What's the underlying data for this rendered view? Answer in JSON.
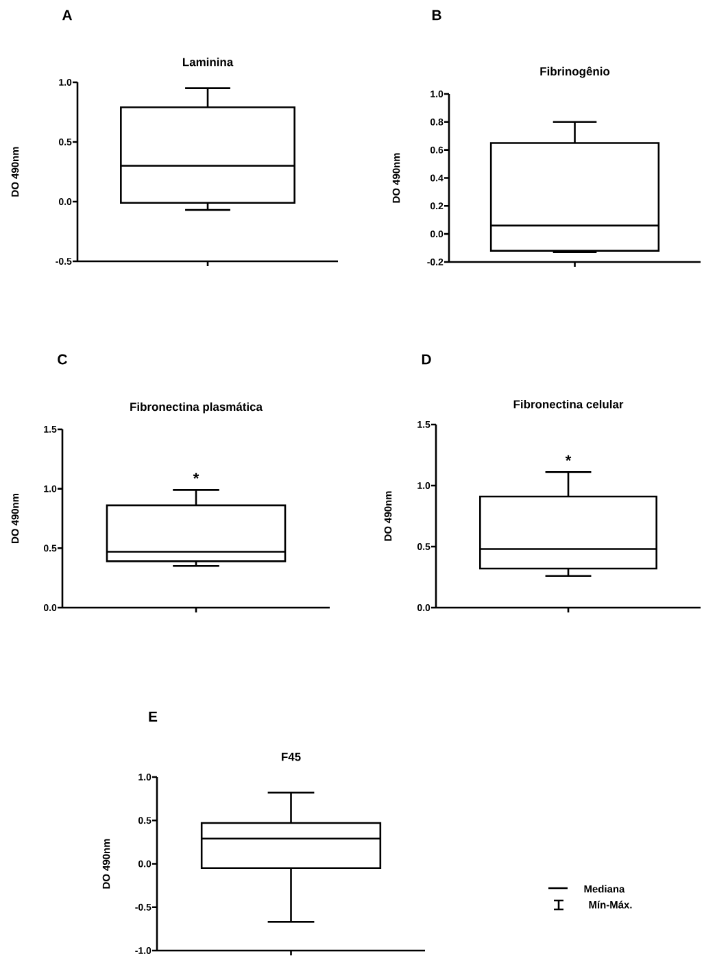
{
  "chart_data": [
    {
      "type": "box",
      "title": "Laminina",
      "ylabel": "DO 490nm",
      "categories": [
        null
      ],
      "annotations": [
        "A"
      ],
      "boxes": [
        {
          "low": -0.07,
          "q1": -0.01,
          "median": 0.3,
          "q3": 0.79,
          "high": 0.95
        }
      ],
      "ylim": [
        -0.5,
        1.0
      ],
      "yticks": [
        {
          "value": -0.5,
          "label": "-0.5"
        },
        {
          "value": 0,
          "label": "0.0"
        },
        {
          "value": 0.5,
          "label": "0.5"
        },
        {
          "value": 1,
          "label": "1.0"
        }
      ]
    },
    {
      "type": "box",
      "title": "Fibrinogênio",
      "ylabel": "DO 490nm",
      "categories": [
        null
      ],
      "annotations": [
        "B"
      ],
      "boxes": [
        {
          "low": -0.13,
          "q1": -0.12,
          "median": 0.06,
          "q3": 0.65,
          "high": 0.8
        }
      ],
      "ylim": [
        -0.2,
        1.0
      ],
      "yticks": [
        {
          "value": -0.2,
          "label": "-0.2"
        },
        {
          "value": 0,
          "label": "0.0"
        },
        {
          "value": 0.2,
          "label": "0.2"
        },
        {
          "value": 0.4,
          "label": "0.4"
        },
        {
          "value": 0.6,
          "label": "0.6"
        },
        {
          "value": 0.8,
          "label": "0.8"
        },
        {
          "value": 1,
          "label": "1.0"
        }
      ]
    },
    {
      "type": "box",
      "title": "Fibronectina plasmática",
      "ylabel": "DO 490nm",
      "categories": [
        null
      ],
      "annotations": [
        "C",
        "*"
      ],
      "boxes": [
        {
          "low": 0.35,
          "q1": 0.39,
          "median": 0.47,
          "q3": 0.86,
          "high": 0.99
        }
      ],
      "ylim": [
        0,
        1.5
      ],
      "yticks": [
        {
          "value": 0,
          "label": "0.0"
        },
        {
          "value": 0.5,
          "label": "0.5"
        },
        {
          "value": 1,
          "label": "1.0"
        },
        {
          "value": 1.5,
          "label": "1.5"
        }
      ]
    },
    {
      "type": "box",
      "title": "Fibronectina celular",
      "ylabel": "DO 490nm",
      "categories": [
        null
      ],
      "annotations": [
        "D",
        "*"
      ],
      "boxes": [
        {
          "low": 0.26,
          "q1": 0.32,
          "median": 0.48,
          "q3": 0.91,
          "high": 1.11
        }
      ],
      "ylim": [
        0,
        1.5
      ],
      "yticks": [
        {
          "value": 0,
          "label": "0.0"
        },
        {
          "value": 0.5,
          "label": "0.5"
        },
        {
          "value": 1,
          "label": "1.0"
        },
        {
          "value": 1.5,
          "label": "1.5"
        }
      ]
    },
    {
      "type": "box",
      "title": "F45",
      "ylabel": "DO 490nm",
      "categories": [
        null
      ],
      "annotations": [
        "E",
        "Mediana",
        "Mín-Máx."
      ],
      "boxes": [
        {
          "low": -0.67,
          "q1": -0.05,
          "median": 0.29,
          "q3": 0.47,
          "high": 0.82
        }
      ],
      "ylim": [
        -1.0,
        1.0
      ],
      "yticks": [
        {
          "value": -1,
          "label": "-1.0"
        },
        {
          "value": -0.5,
          "label": "-0.5"
        },
        {
          "value": 0,
          "label": "0.0"
        },
        {
          "value": 0.5,
          "label": "0.5"
        },
        {
          "value": 1,
          "label": "1.0"
        }
      ]
    }
  ]
}
